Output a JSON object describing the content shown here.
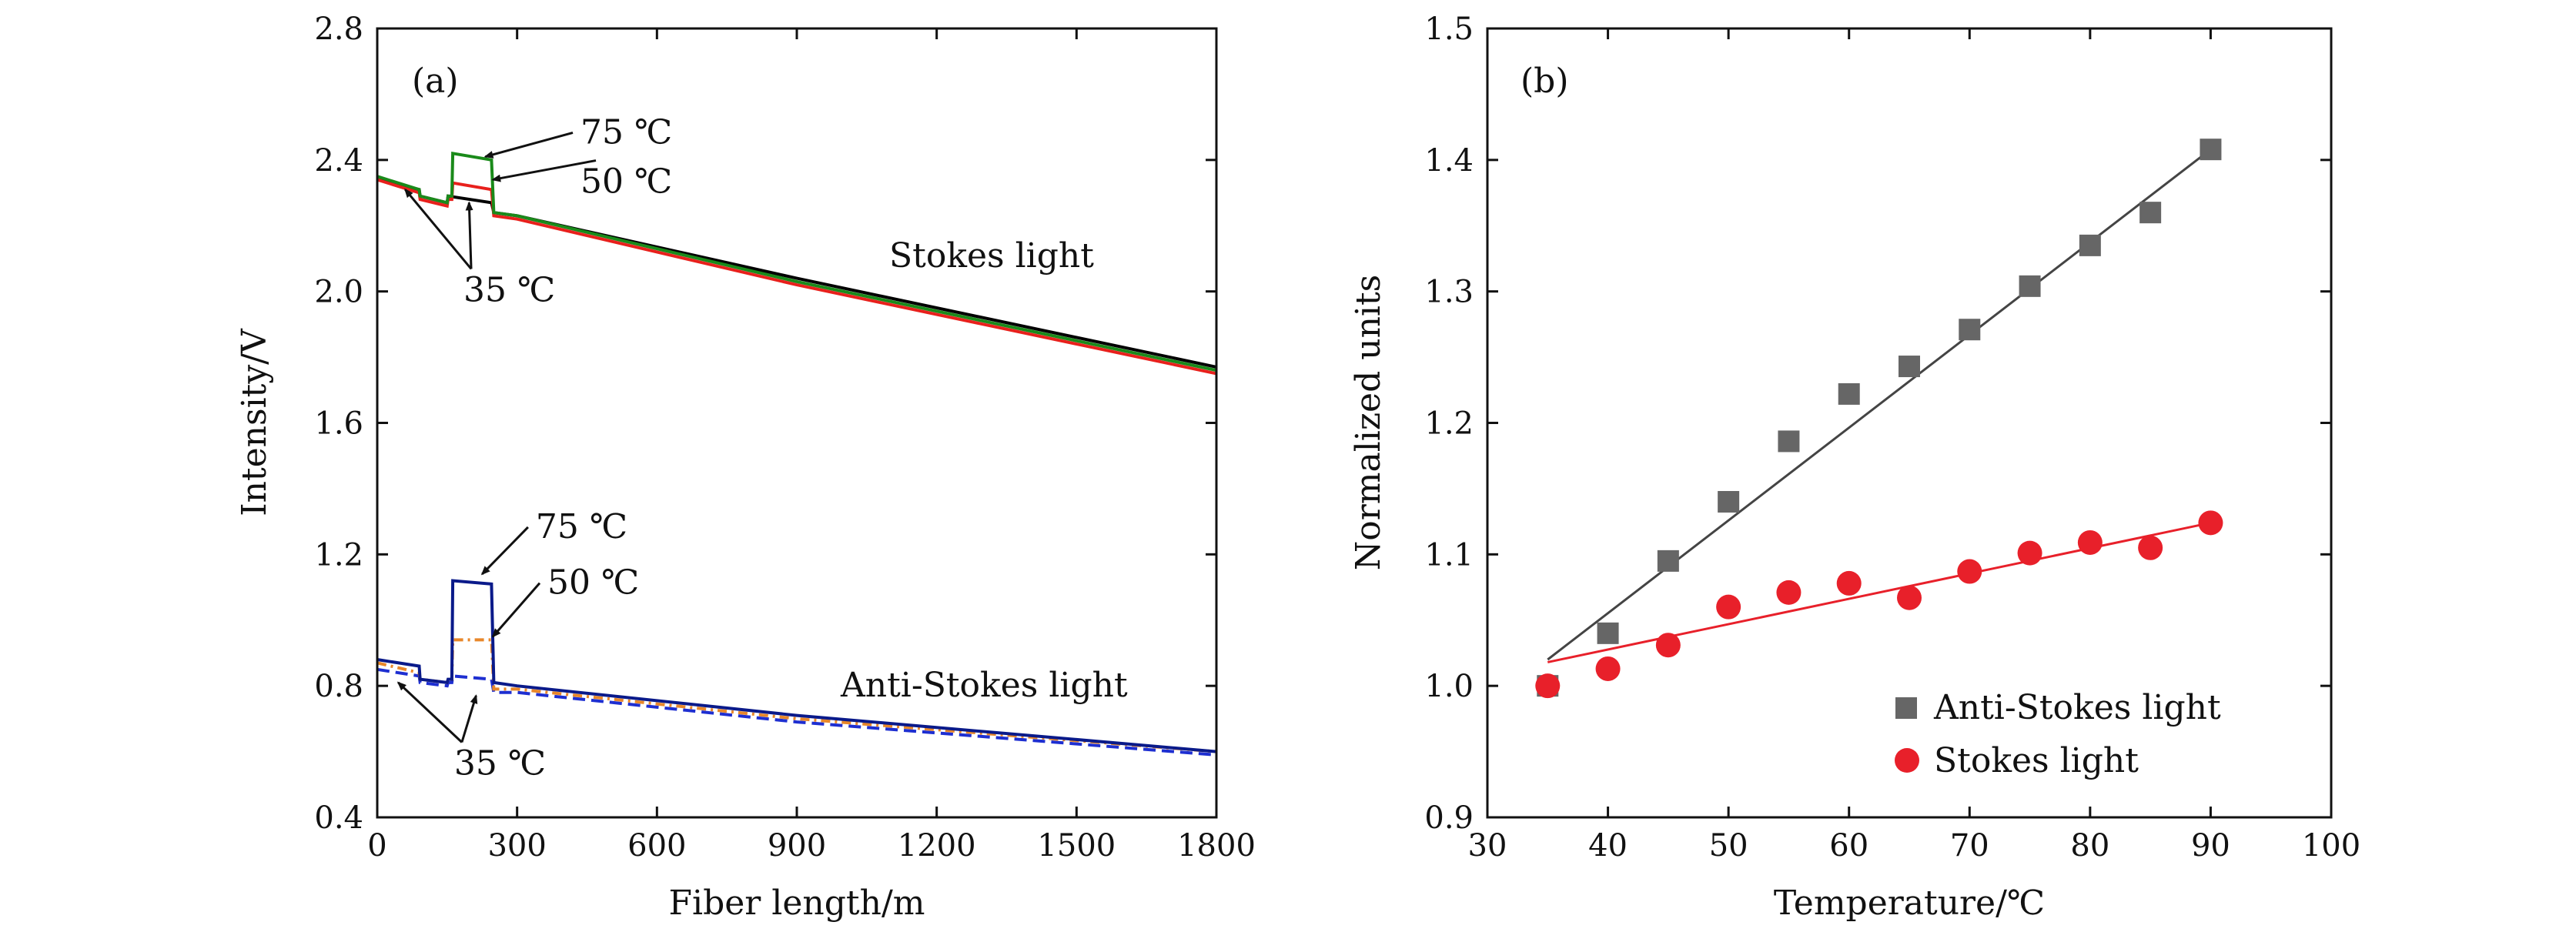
{
  "chart_data": [
    {
      "panel": "(a)",
      "type": "line",
      "xlabel": "Fiber length/m",
      "ylabel": "Intensity/V",
      "xlim": [
        0,
        1800
      ],
      "ylim": [
        0.4,
        2.8
      ],
      "xticks": [
        0,
        300,
        600,
        900,
        1200,
        1500,
        1800
      ],
      "yticks": [
        0.4,
        0.8,
        1.2,
        1.6,
        2.0,
        2.4,
        2.8
      ],
      "ytick_labels": [
        "0.4",
        "0.8",
        "1.2",
        "1.6",
        "2.0",
        "2.4",
        "2.8"
      ],
      "group_labels": {
        "stokes": "Stokes light",
        "anti_stokes": "Anti-Stokes light"
      },
      "series": [
        {
          "name": "Stokes 35 ℃",
          "group": "stokes",
          "color": "#000000",
          "dash": "",
          "x": [
            0,
            90,
            92,
            150,
            152,
            245,
            250,
            300,
            900,
            1800
          ],
          "y": [
            2.34,
            2.31,
            2.29,
            2.27,
            2.29,
            2.27,
            2.24,
            2.23,
            2.04,
            1.77
          ]
        },
        {
          "name": "Stokes 50 ℃",
          "group": "stokes",
          "color": "#e8201c",
          "dash": "",
          "x": [
            0,
            90,
            92,
            150,
            152,
            160,
            162,
            245,
            250,
            300,
            900,
            1800
          ],
          "y": [
            2.34,
            2.3,
            2.28,
            2.26,
            2.28,
            2.28,
            2.33,
            2.31,
            2.23,
            2.22,
            2.02,
            1.75
          ]
        },
        {
          "name": "Stokes 75 ℃",
          "group": "stokes",
          "color": "#1a8a1a",
          "dash": "",
          "x": [
            0,
            90,
            92,
            150,
            152,
            160,
            162,
            245,
            250,
            300,
            900,
            1800
          ],
          "y": [
            2.35,
            2.31,
            2.29,
            2.27,
            2.29,
            2.29,
            2.42,
            2.4,
            2.24,
            2.23,
            2.03,
            1.76
          ]
        },
        {
          "name": "Anti-Stokes 35 ℃",
          "group": "anti_stokes",
          "color": "#1e2fd1",
          "dash": "16,8",
          "x": [
            0,
            90,
            92,
            150,
            152,
            160,
            162,
            245,
            250,
            300,
            900,
            1800
          ],
          "y": [
            0.85,
            0.83,
            0.81,
            0.8,
            0.81,
            0.81,
            0.83,
            0.82,
            0.78,
            0.78,
            0.69,
            0.59
          ]
        },
        {
          "name": "Anti-Stokes 50 ℃",
          "group": "anti_stokes",
          "color": "#e8872a",
          "dash": "12,6,3,6",
          "x": [
            0,
            90,
            92,
            150,
            152,
            160,
            162,
            245,
            250,
            300,
            900,
            1800
          ],
          "y": [
            0.87,
            0.84,
            0.82,
            0.81,
            0.82,
            0.82,
            0.94,
            0.94,
            0.79,
            0.79,
            0.7,
            0.6
          ]
        },
        {
          "name": "Anti-Stokes 75 ℃",
          "group": "anti_stokes",
          "color": "#0a1a8a",
          "dash": "",
          "x": [
            0,
            90,
            92,
            150,
            152,
            160,
            162,
            245,
            250,
            300,
            900,
            1800
          ],
          "y": [
            0.88,
            0.86,
            0.82,
            0.81,
            0.82,
            0.82,
            1.12,
            1.11,
            0.81,
            0.8,
            0.71,
            0.6
          ]
        }
      ],
      "annotations": [
        {
          "text": "75 ℃",
          "x": 436,
          "y": 2.45,
          "arrow_to": [
            232,
            2.41
          ]
        },
        {
          "text": "50 ℃",
          "x": 436,
          "y": 2.3,
          "arrow_to": [
            248,
            2.34
          ]
        },
        {
          "text": "35 ℃",
          "x": 185,
          "y": 1.97,
          "arrow_to": [
            60,
            2.31
          ]
        },
        {
          "text": "35 ℃",
          "x": 185,
          "y": 1.97,
          "arrow_to": [
            197,
            2.27
          ]
        },
        {
          "text": "75 ℃",
          "x": 340,
          "y": 1.25,
          "arrow_to": [
            225,
            1.14
          ]
        },
        {
          "text": "50 ℃",
          "x": 365,
          "y": 1.08,
          "arrow_to": [
            248,
            0.95
          ]
        },
        {
          "text": "35 ℃",
          "x": 165,
          "y": 0.53,
          "arrow_to": [
            45,
            0.81
          ]
        },
        {
          "text": "35 ℃",
          "x": 165,
          "y": 0.53,
          "arrow_to": [
            212,
            0.77
          ]
        }
      ]
    },
    {
      "panel": "(b)",
      "type": "scatter",
      "xlabel": "Temperature/℃",
      "ylabel": "Normalized units",
      "xlim": [
        30,
        100
      ],
      "ylim": [
        0.9,
        1.5
      ],
      "xticks": [
        30,
        40,
        50,
        60,
        70,
        80,
        90,
        100
      ],
      "yticks": [
        0.9,
        1.0,
        1.1,
        1.2,
        1.3,
        1.4,
        1.5
      ],
      "ytick_labels": [
        "0.9",
        "1.0",
        "1.1",
        "1.2",
        "1.3",
        "1.4",
        "1.5"
      ],
      "series": [
        {
          "name": "Anti-Stokes light",
          "marker": "square",
          "color": "#666666",
          "fit_color": "#444444",
          "x": [
            35,
            40,
            45,
            50,
            55,
            60,
            65,
            70,
            75,
            80,
            85,
            90
          ],
          "y": [
            1.0,
            1.04,
            1.095,
            1.14,
            1.186,
            1.222,
            1.243,
            1.271,
            1.304,
            1.335,
            1.36,
            1.408
          ],
          "fit": [
            [
              35,
              1.02
            ],
            [
              90,
              1.408
            ]
          ]
        },
        {
          "name": "Stokes light",
          "marker": "circle",
          "color": "#e8202a",
          "fit_color": "#e8202a",
          "x": [
            35,
            40,
            45,
            50,
            55,
            60,
            65,
            70,
            75,
            80,
            85,
            90
          ],
          "y": [
            1.0,
            1.013,
            1.031,
            1.06,
            1.071,
            1.078,
            1.067,
            1.087,
            1.101,
            1.109,
            1.105,
            1.124
          ],
          "fit": [
            [
              35,
              1.018
            ],
            [
              90,
              1.124
            ]
          ]
        }
      ],
      "legend_position": "lower-right"
    }
  ]
}
